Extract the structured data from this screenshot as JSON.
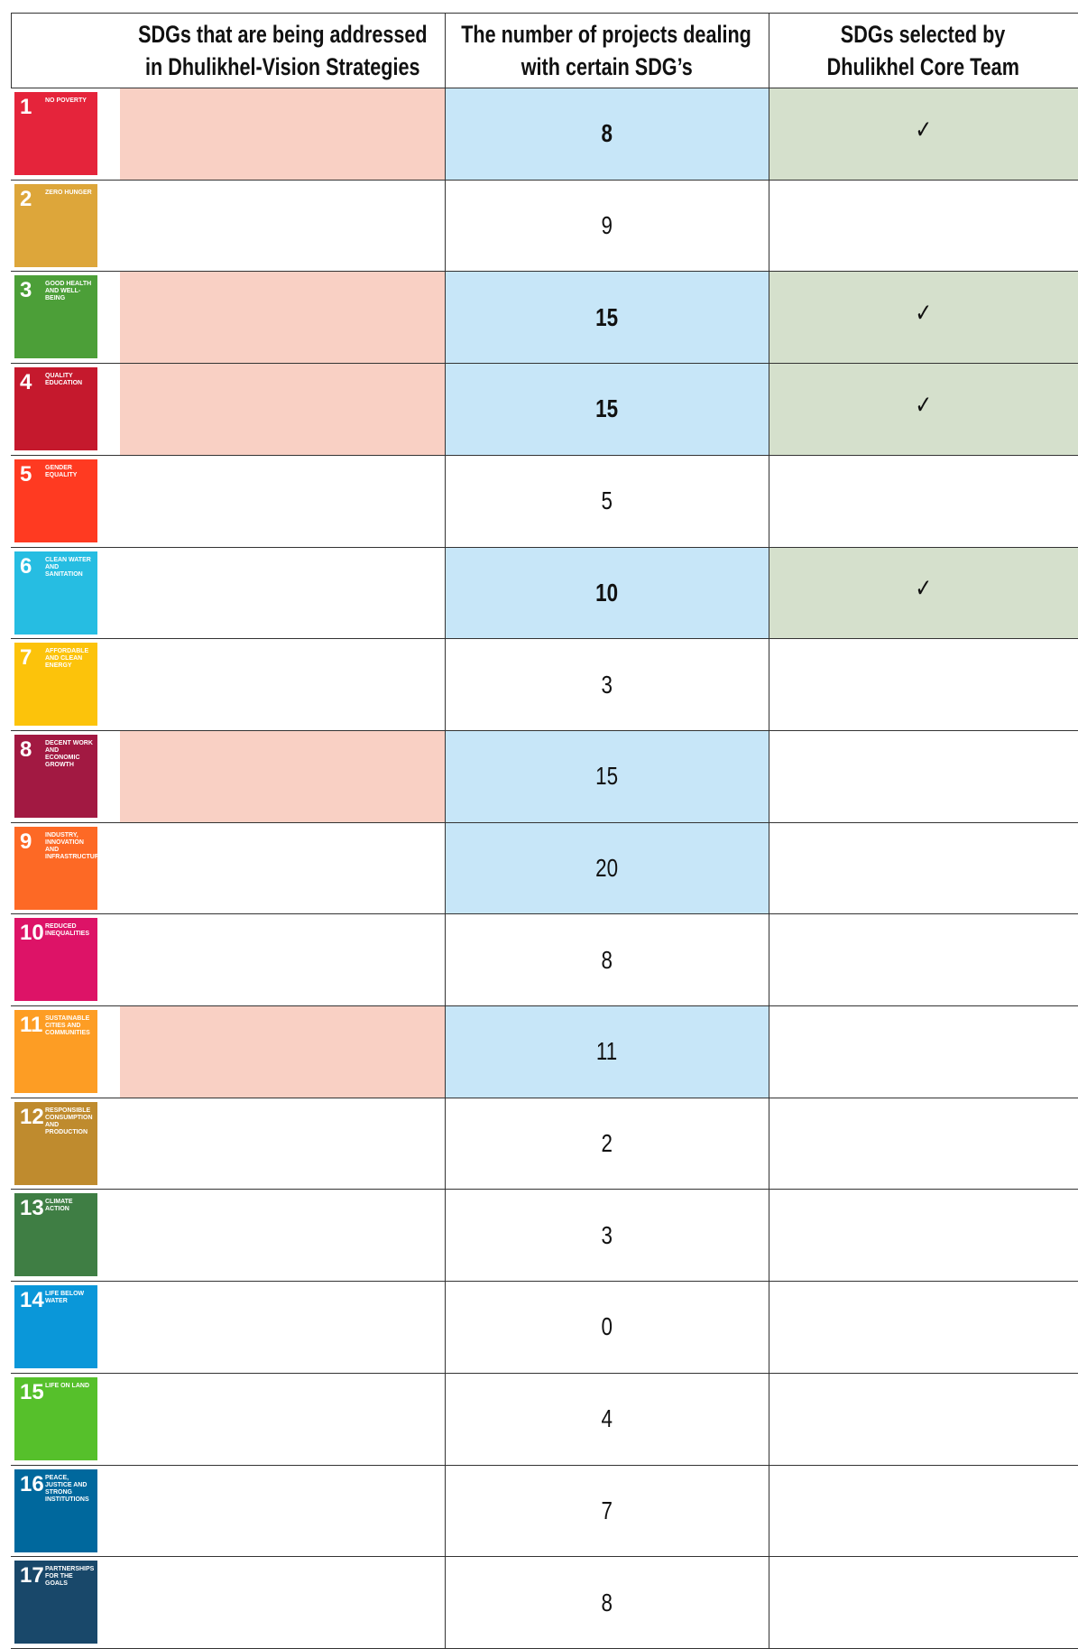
{
  "table": {
    "header": [
      [
        "SDGs that are being addressed",
        "in Dhulikhel-Vision Strategies"
      ],
      [
        "The number of projects dealing",
        "with certain SDG’s"
      ],
      [
        "SDGs selected by",
        "Dhulikhel Core Team"
      ]
    ],
    "rows": [
      {
        "sdg": 1,
        "label": "NO POVERTY",
        "color": "#e5243b",
        "vision": true,
        "projects": 8,
        "bold": true,
        "highlight": true,
        "core": "✓"
      },
      {
        "sdg": 2,
        "label": "ZERO HUNGER",
        "color": "#dda63a",
        "vision": false,
        "projects": 9,
        "bold": false,
        "highlight": false,
        "core": null
      },
      {
        "sdg": 3,
        "label": "GOOD HEALTH AND WELL-BEING",
        "color": "#4c9f38",
        "vision": true,
        "projects": 15,
        "bold": true,
        "highlight": true,
        "core": "✓"
      },
      {
        "sdg": 4,
        "label": "QUALITY EDUCATION",
        "color": "#c5192d",
        "vision": true,
        "projects": 15,
        "bold": true,
        "highlight": true,
        "core": "✓"
      },
      {
        "sdg": 5,
        "label": "GENDER EQUALITY",
        "color": "#ff3a21",
        "vision": false,
        "projects": 5,
        "bold": false,
        "highlight": false,
        "core": null
      },
      {
        "sdg": 6,
        "label": "CLEAN WATER AND SANITATION",
        "color": "#26bde2",
        "vision": false,
        "projects": 10,
        "bold": true,
        "highlight": true,
        "core": "✓"
      },
      {
        "sdg": 7,
        "label": "AFFORDABLE AND CLEAN ENERGY",
        "color": "#fcc30b",
        "vision": false,
        "projects": 3,
        "bold": false,
        "highlight": false,
        "core": null
      },
      {
        "sdg": 8,
        "label": "DECENT WORK AND ECONOMIC GROWTH",
        "color": "#a21942",
        "vision": true,
        "projects": 15,
        "bold": false,
        "highlight": true,
        "core": null
      },
      {
        "sdg": 9,
        "label": "INDUSTRY, INNOVATION AND INFRASTRUCTURE",
        "color": "#fd6925",
        "vision": false,
        "projects": 20,
        "bold": false,
        "highlight": true,
        "core": null
      },
      {
        "sdg": 10,
        "label": "REDUCED INEQUALITIES",
        "color": "#dd1367",
        "vision": false,
        "projects": 8,
        "bold": false,
        "highlight": false,
        "core": null
      },
      {
        "sdg": 11,
        "label": "SUSTAINABLE CITIES AND COMMUNITIES",
        "color": "#fd9d24",
        "vision": true,
        "projects": 11,
        "bold": false,
        "highlight": true,
        "core": null
      },
      {
        "sdg": 12,
        "label": "RESPONSIBLE CONSUMPTION AND PRODUCTION",
        "color": "#bf8b2e",
        "vision": false,
        "projects": 2,
        "bold": false,
        "highlight": false,
        "core": null
      },
      {
        "sdg": 13,
        "label": "CLIMATE ACTION",
        "color": "#3f7e44",
        "vision": false,
        "projects": 3,
        "bold": false,
        "highlight": false,
        "core": null
      },
      {
        "sdg": 14,
        "label": "LIFE BELOW WATER",
        "color": "#0a97d9",
        "vision": false,
        "projects": 0,
        "bold": false,
        "highlight": false,
        "core": null
      },
      {
        "sdg": 15,
        "label": "LIFE ON LAND",
        "color": "#56c02b",
        "vision": false,
        "projects": 4,
        "bold": false,
        "highlight": false,
        "core": null
      },
      {
        "sdg": 16,
        "label": "PEACE, JUSTICE AND STRONG INSTITUTIONS",
        "color": "#00689d",
        "vision": false,
        "projects": 7,
        "bold": false,
        "highlight": false,
        "core": null
      },
      {
        "sdg": 17,
        "label": "PARTNERSHIPS FOR THE GOALS",
        "color": "#19486a",
        "vision": false,
        "projects": 8,
        "bold": false,
        "highlight": false,
        "core": null
      }
    ]
  }
}
